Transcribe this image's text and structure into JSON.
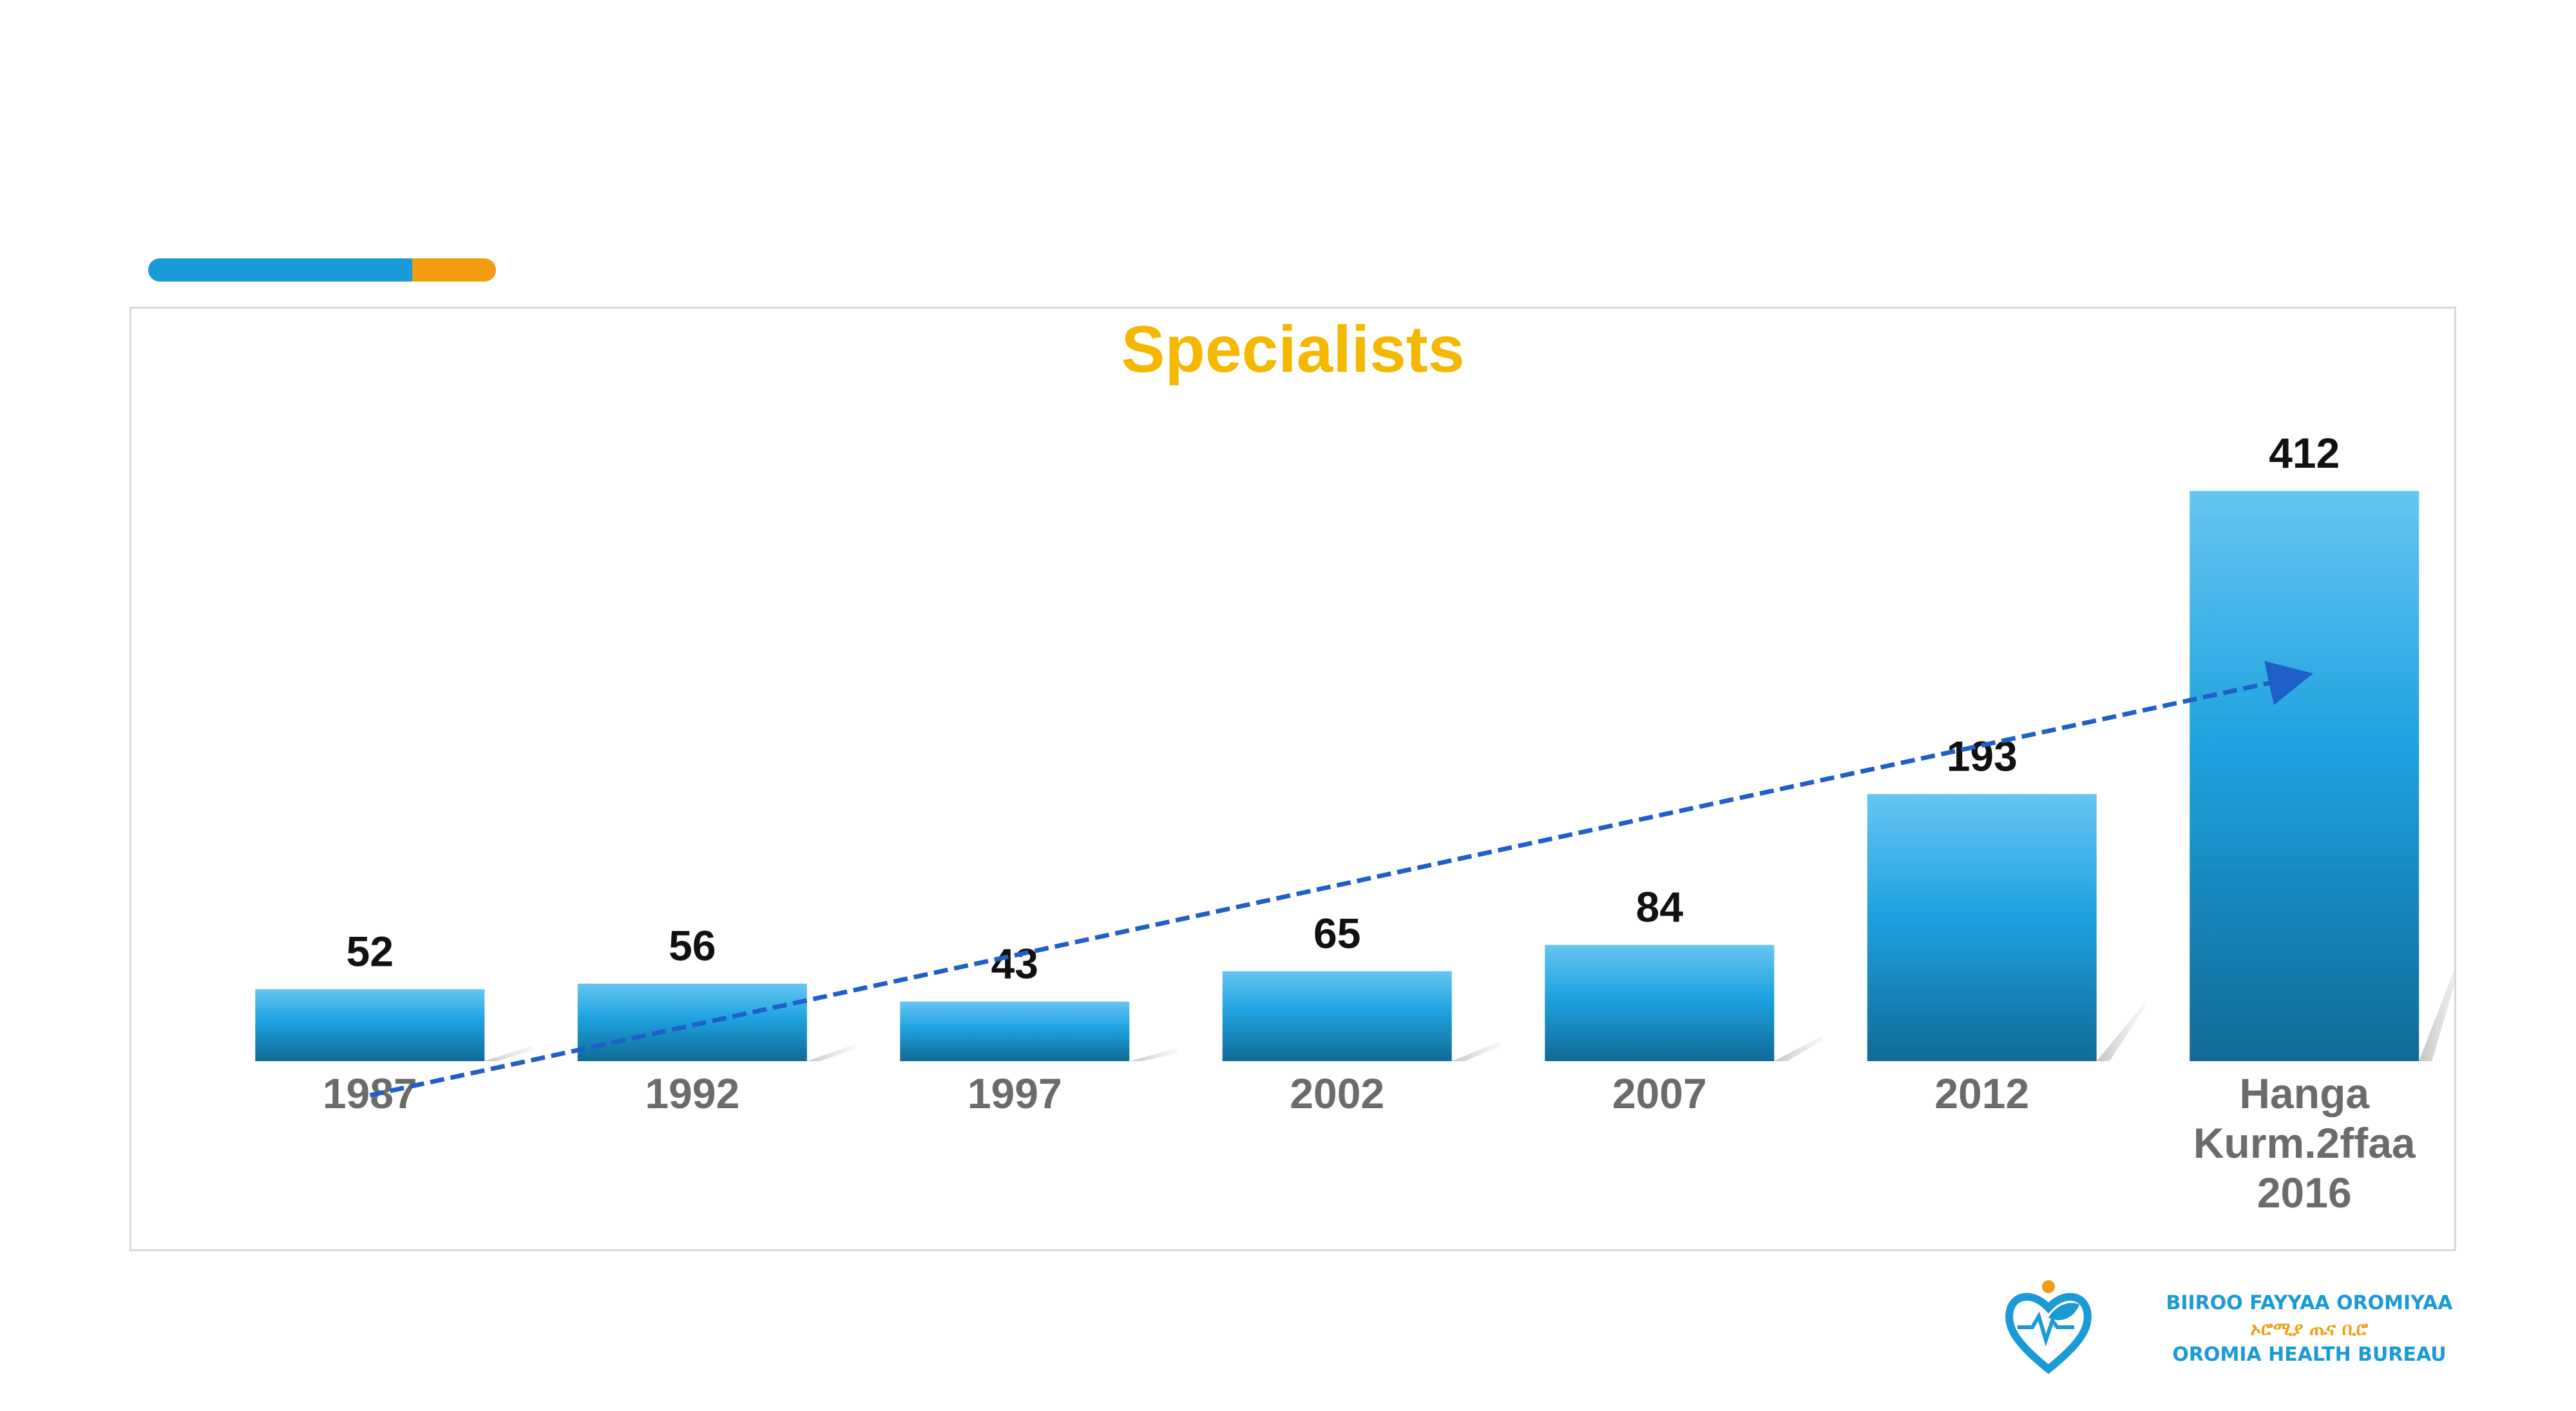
{
  "colors": {
    "accent_blue": "#1a9ad6",
    "accent_orange": "#f39c12",
    "title": "#f5b800",
    "bar_top": "#66c6f2",
    "bar_mid": "#1ea2df",
    "bar_bottom": "#106a96",
    "trend": "#1f5fc8",
    "logo_blue": "#1a9ad6",
    "logo_orange": "#f39c12"
  },
  "chart_data": {
    "type": "bar",
    "title": "Specialists",
    "categories": [
      "1987",
      "1992",
      "1997",
      "2002",
      "2007",
      "2012",
      "Hanga Kurm.2ffaa 2016"
    ],
    "category_lines": [
      [
        "1987"
      ],
      [
        "1992"
      ],
      [
        "1997"
      ],
      [
        "2002"
      ],
      [
        "2007"
      ],
      [
        "2012"
      ],
      [
        "Hanga",
        "Kurm.2ffaa",
        "2016"
      ]
    ],
    "values": [
      52,
      56,
      43,
      65,
      84,
      193,
      412
    ],
    "value_labels": [
      "52",
      "56",
      "43",
      "65",
      "84",
      "193",
      "412"
    ],
    "ylim": [
      0,
      412
    ],
    "xlabel": "",
    "ylabel": "",
    "grid": false,
    "legend": "none",
    "trendline": {
      "style": "dashed",
      "arrow": true
    }
  },
  "logo": {
    "line1": "BIIROO FAYYAA OROMIYAA",
    "line2": "ኦሮሚያ ጤና ቢሮ",
    "line3": "OROMIA HEALTH BUREAU",
    "icon": "heart-hands-icon"
  }
}
